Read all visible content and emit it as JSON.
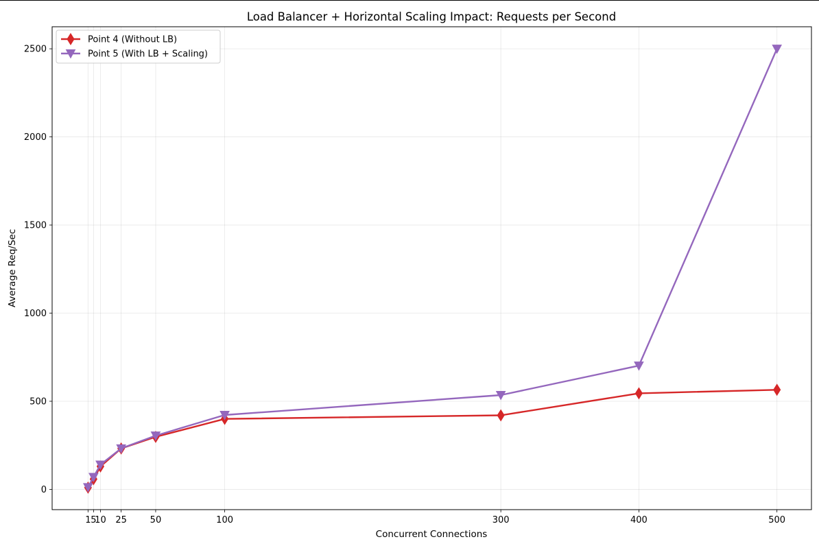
{
  "chart_data": {
    "type": "line",
    "title": "Load Balancer + Horizontal Scaling Impact: Requests per Second",
    "xlabel": "Concurrent Connections",
    "ylabel": "Average Req/Sec",
    "x": [
      1,
      5,
      10,
      25,
      50,
      100,
      300,
      400,
      500
    ],
    "x_tick_labels": [
      "1",
      "5",
      "10",
      "25",
      "50",
      "100",
      "300",
      "400",
      "500"
    ],
    "y_ticks": [
      0,
      500,
      1000,
      1500,
      2000,
      2500
    ],
    "xlim": [
      -25,
      525
    ],
    "ylim": [
      -115,
      2625
    ],
    "grid": true,
    "legend_position": "top-left",
    "series": [
      {
        "name": "Point 4 (Without LB)",
        "color": "#d62728",
        "marker": "thin-diamond",
        "values": [
          10,
          58,
          130,
          232,
          298,
          400,
          420,
          545,
          565
        ]
      },
      {
        "name": "Point 5 (With LB + Scaling)",
        "color": "#9467bd",
        "marker": "triangle-down",
        "values": [
          12,
          70,
          140,
          232,
          305,
          422,
          535,
          702,
          2500
        ]
      }
    ]
  }
}
